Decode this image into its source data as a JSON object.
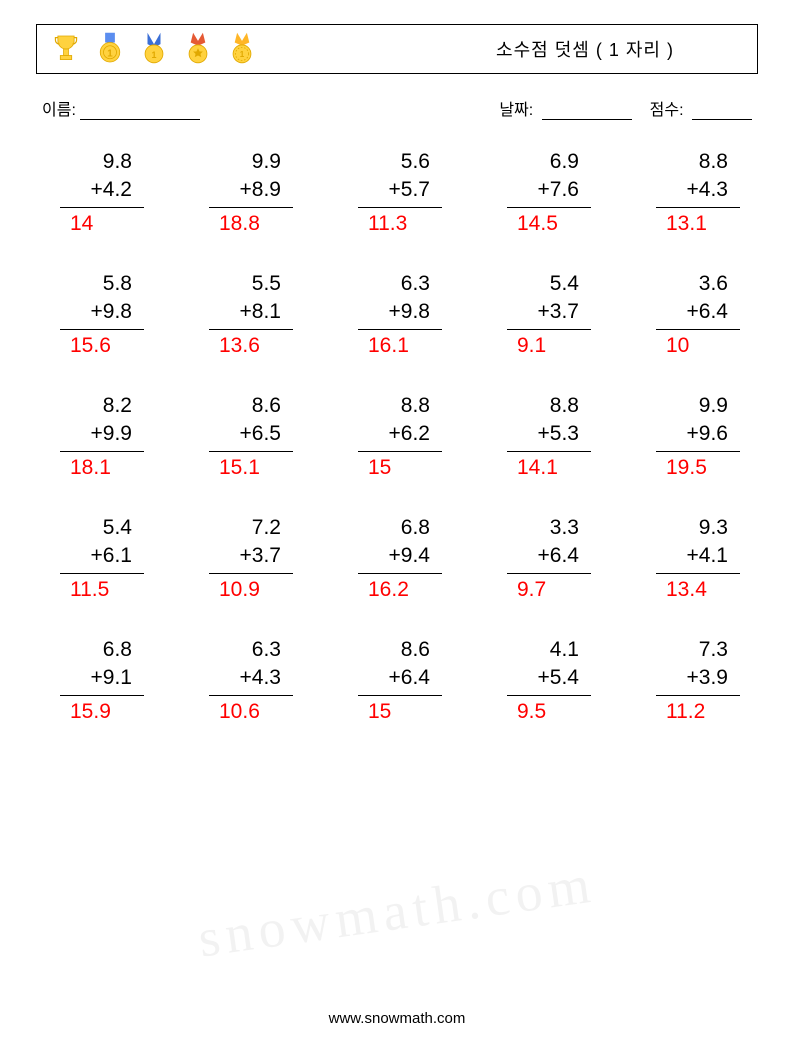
{
  "header": {
    "title": "소수점 덧셈 ( 1 자리 )"
  },
  "labels": {
    "name": "이름:",
    "date": "날짜:",
    "score": "점수:"
  },
  "style": {
    "answer_color": "#ff0000",
    "border_color": "#000000",
    "font_size_problem": 21,
    "font_size_title": 18,
    "font_size_labels": 16,
    "operator": "+"
  },
  "problems": [
    [
      {
        "a": "9.8",
        "b": "4.2",
        "ans": "14"
      },
      {
        "a": "9.9",
        "b": "8.9",
        "ans": "18.8"
      },
      {
        "a": "5.6",
        "b": "5.7",
        "ans": "11.3"
      },
      {
        "a": "6.9",
        "b": "7.6",
        "ans": "14.5"
      },
      {
        "a": "8.8",
        "b": "4.3",
        "ans": "13.1"
      }
    ],
    [
      {
        "a": "5.8",
        "b": "9.8",
        "ans": "15.6"
      },
      {
        "a": "5.5",
        "b": "8.1",
        "ans": "13.6"
      },
      {
        "a": "6.3",
        "b": "9.8",
        "ans": "16.1"
      },
      {
        "a": "5.4",
        "b": "3.7",
        "ans": "9.1"
      },
      {
        "a": "3.6",
        "b": "6.4",
        "ans": "10"
      }
    ],
    [
      {
        "a": "8.2",
        "b": "9.9",
        "ans": "18.1"
      },
      {
        "a": "8.6",
        "b": "6.5",
        "ans": "15.1"
      },
      {
        "a": "8.8",
        "b": "6.2",
        "ans": "15"
      },
      {
        "a": "8.8",
        "b": "5.3",
        "ans": "14.1"
      },
      {
        "a": "9.9",
        "b": "9.6",
        "ans": "19.5"
      }
    ],
    [
      {
        "a": "5.4",
        "b": "6.1",
        "ans": "11.5"
      },
      {
        "a": "7.2",
        "b": "3.7",
        "ans": "10.9"
      },
      {
        "a": "6.8",
        "b": "9.4",
        "ans": "16.2"
      },
      {
        "a": "3.3",
        "b": "6.4",
        "ans": "9.7"
      },
      {
        "a": "9.3",
        "b": "4.1",
        "ans": "13.4"
      }
    ],
    [
      {
        "a": "6.8",
        "b": "9.1",
        "ans": "15.9"
      },
      {
        "a": "6.3",
        "b": "4.3",
        "ans": "10.6"
      },
      {
        "a": "8.6",
        "b": "6.4",
        "ans": "15"
      },
      {
        "a": "4.1",
        "b": "5.4",
        "ans": "9.5"
      },
      {
        "a": "7.3",
        "b": "3.9",
        "ans": "11.2"
      }
    ]
  ],
  "footer": {
    "url": "www.snowmath.com",
    "watermark": "snowmath.com"
  }
}
